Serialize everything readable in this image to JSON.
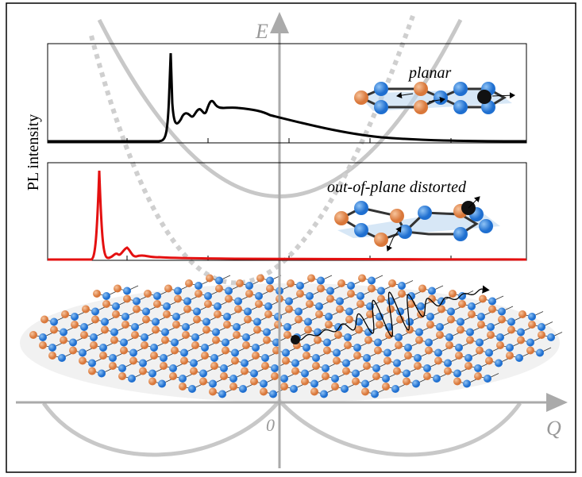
{
  "axes": {
    "energy": "E",
    "momentum": "Q",
    "origin": "0"
  },
  "y_label": "PL intensity",
  "panels": [
    {
      "label": "planar"
    },
    {
      "label": "out-of-plane distorted"
    }
  ]
}
